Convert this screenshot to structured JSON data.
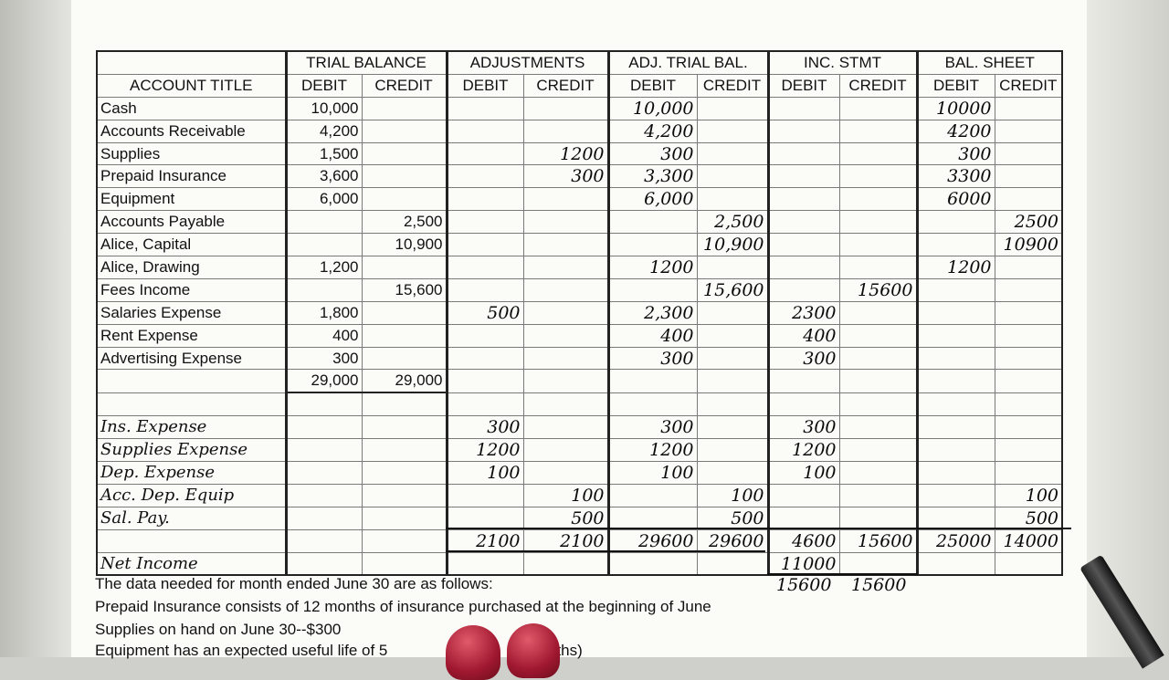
{
  "headers": {
    "groups": [
      "TRIAL BALANCE",
      "ADJUSTMENTS",
      "ADJ. TRIAL BAL.",
      "INC. STMT",
      "BAL. SHEET"
    ],
    "account_title": "ACCOUNT TITLE",
    "sub": [
      "DEBIT",
      "CREDIT",
      "DEBIT",
      "CREDIT",
      "DEBIT",
      "CREDIT",
      "DEBIT",
      "CREDIT",
      "DEBIT",
      "CREDIT"
    ]
  },
  "rows": [
    {
      "title": "Cash",
      "v": [
        "10,000",
        "",
        "",
        "",
        "10,000",
        "",
        "",
        "",
        "10000",
        ""
      ]
    },
    {
      "title": "Accounts Receivable",
      "v": [
        "4,200",
        "",
        "",
        "",
        "4,200",
        "",
        "",
        "",
        "4200",
        ""
      ]
    },
    {
      "title": "Supplies",
      "v": [
        "1,500",
        "",
        "",
        "1200",
        "300",
        "",
        "",
        "",
        "300",
        ""
      ]
    },
    {
      "title": "Prepaid Insurance",
      "v": [
        "3,600",
        "",
        "",
        "300",
        "3,300",
        "",
        "",
        "",
        "3300",
        ""
      ]
    },
    {
      "title": "Equipment",
      "v": [
        "6,000",
        "",
        "",
        "",
        "6,000",
        "",
        "",
        "",
        "6000",
        ""
      ]
    },
    {
      "title": "Accounts Payable",
      "v": [
        "",
        "2,500",
        "",
        "",
        "",
        "2,500",
        "",
        "",
        "",
        "2500"
      ]
    },
    {
      "title": "Alice, Capital",
      "v": [
        "",
        "10,900",
        "",
        "",
        "",
        "10,900",
        "",
        "",
        "",
        "10900"
      ]
    },
    {
      "title": "Alice, Drawing",
      "v": [
        "1,200",
        "",
        "",
        "",
        "1200",
        "",
        "",
        "",
        "1200",
        ""
      ]
    },
    {
      "title": "Fees Income",
      "v": [
        "",
        "15,600",
        "",
        "",
        "",
        "15,600",
        "",
        "15600",
        "",
        ""
      ]
    },
    {
      "title": "Salaries Expense",
      "v": [
        "1,800",
        "",
        "500",
        "",
        "2,300",
        "",
        "2300",
        "",
        "",
        ""
      ]
    },
    {
      "title": "Rent Expense",
      "v": [
        "400",
        "",
        "",
        "",
        "400",
        "",
        "400",
        "",
        "",
        ""
      ]
    },
    {
      "title": "Advertising Expense",
      "v": [
        "300",
        "",
        "",
        "",
        "300",
        "",
        "300",
        "",
        "",
        ""
      ]
    },
    {
      "title": "",
      "v": [
        "29,000",
        "29,000",
        "",
        "",
        "",
        "",
        "",
        "",
        "",
        ""
      ]
    },
    {
      "title": "",
      "v": [
        "",
        "",
        "",
        "",
        "",
        "",
        "",
        "",
        "",
        ""
      ]
    },
    {
      "title": "Ins. Expense",
      "v": [
        "",
        "",
        "300",
        "",
        "300",
        "",
        "300",
        "",
        "",
        ""
      ]
    },
    {
      "title": "Supplies Expense",
      "v": [
        "",
        "",
        "1200",
        "",
        "1200",
        "",
        "1200",
        "",
        "",
        ""
      ]
    },
    {
      "title": "Dep. Expense",
      "v": [
        "",
        "",
        "100",
        "",
        "100",
        "",
        "100",
        "",
        "",
        ""
      ]
    },
    {
      "title": "Acc. Dep. Equip",
      "v": [
        "",
        "",
        "",
        "100",
        "",
        "100",
        "",
        "",
        "",
        "100"
      ]
    },
    {
      "title": "Sal. Pay.",
      "v": [
        "",
        "",
        "",
        "500",
        "",
        "500",
        "",
        "",
        "",
        "500"
      ]
    },
    {
      "title": "",
      "v": [
        "",
        "",
        "2100",
        "2100",
        "29600",
        "29600",
        "4600",
        "15600",
        "25000",
        "14000"
      ]
    },
    {
      "title": "Net Income",
      "v": [
        "",
        "",
        "",
        "",
        "",
        "",
        "11000",
        "",
        "",
        ""
      ]
    }
  ],
  "inc_stmt_final": [
    "15600",
    "15600"
  ],
  "notes": [
    "The data needed for month ended June 30 are as follows:",
    "Prepaid Insurance consists of 12 months of insurance purchased at the beginning of June",
    "Supplies on hand on June 30--$300",
    "Equipment has an expected useful life of 5",
    "nths)"
  ]
}
